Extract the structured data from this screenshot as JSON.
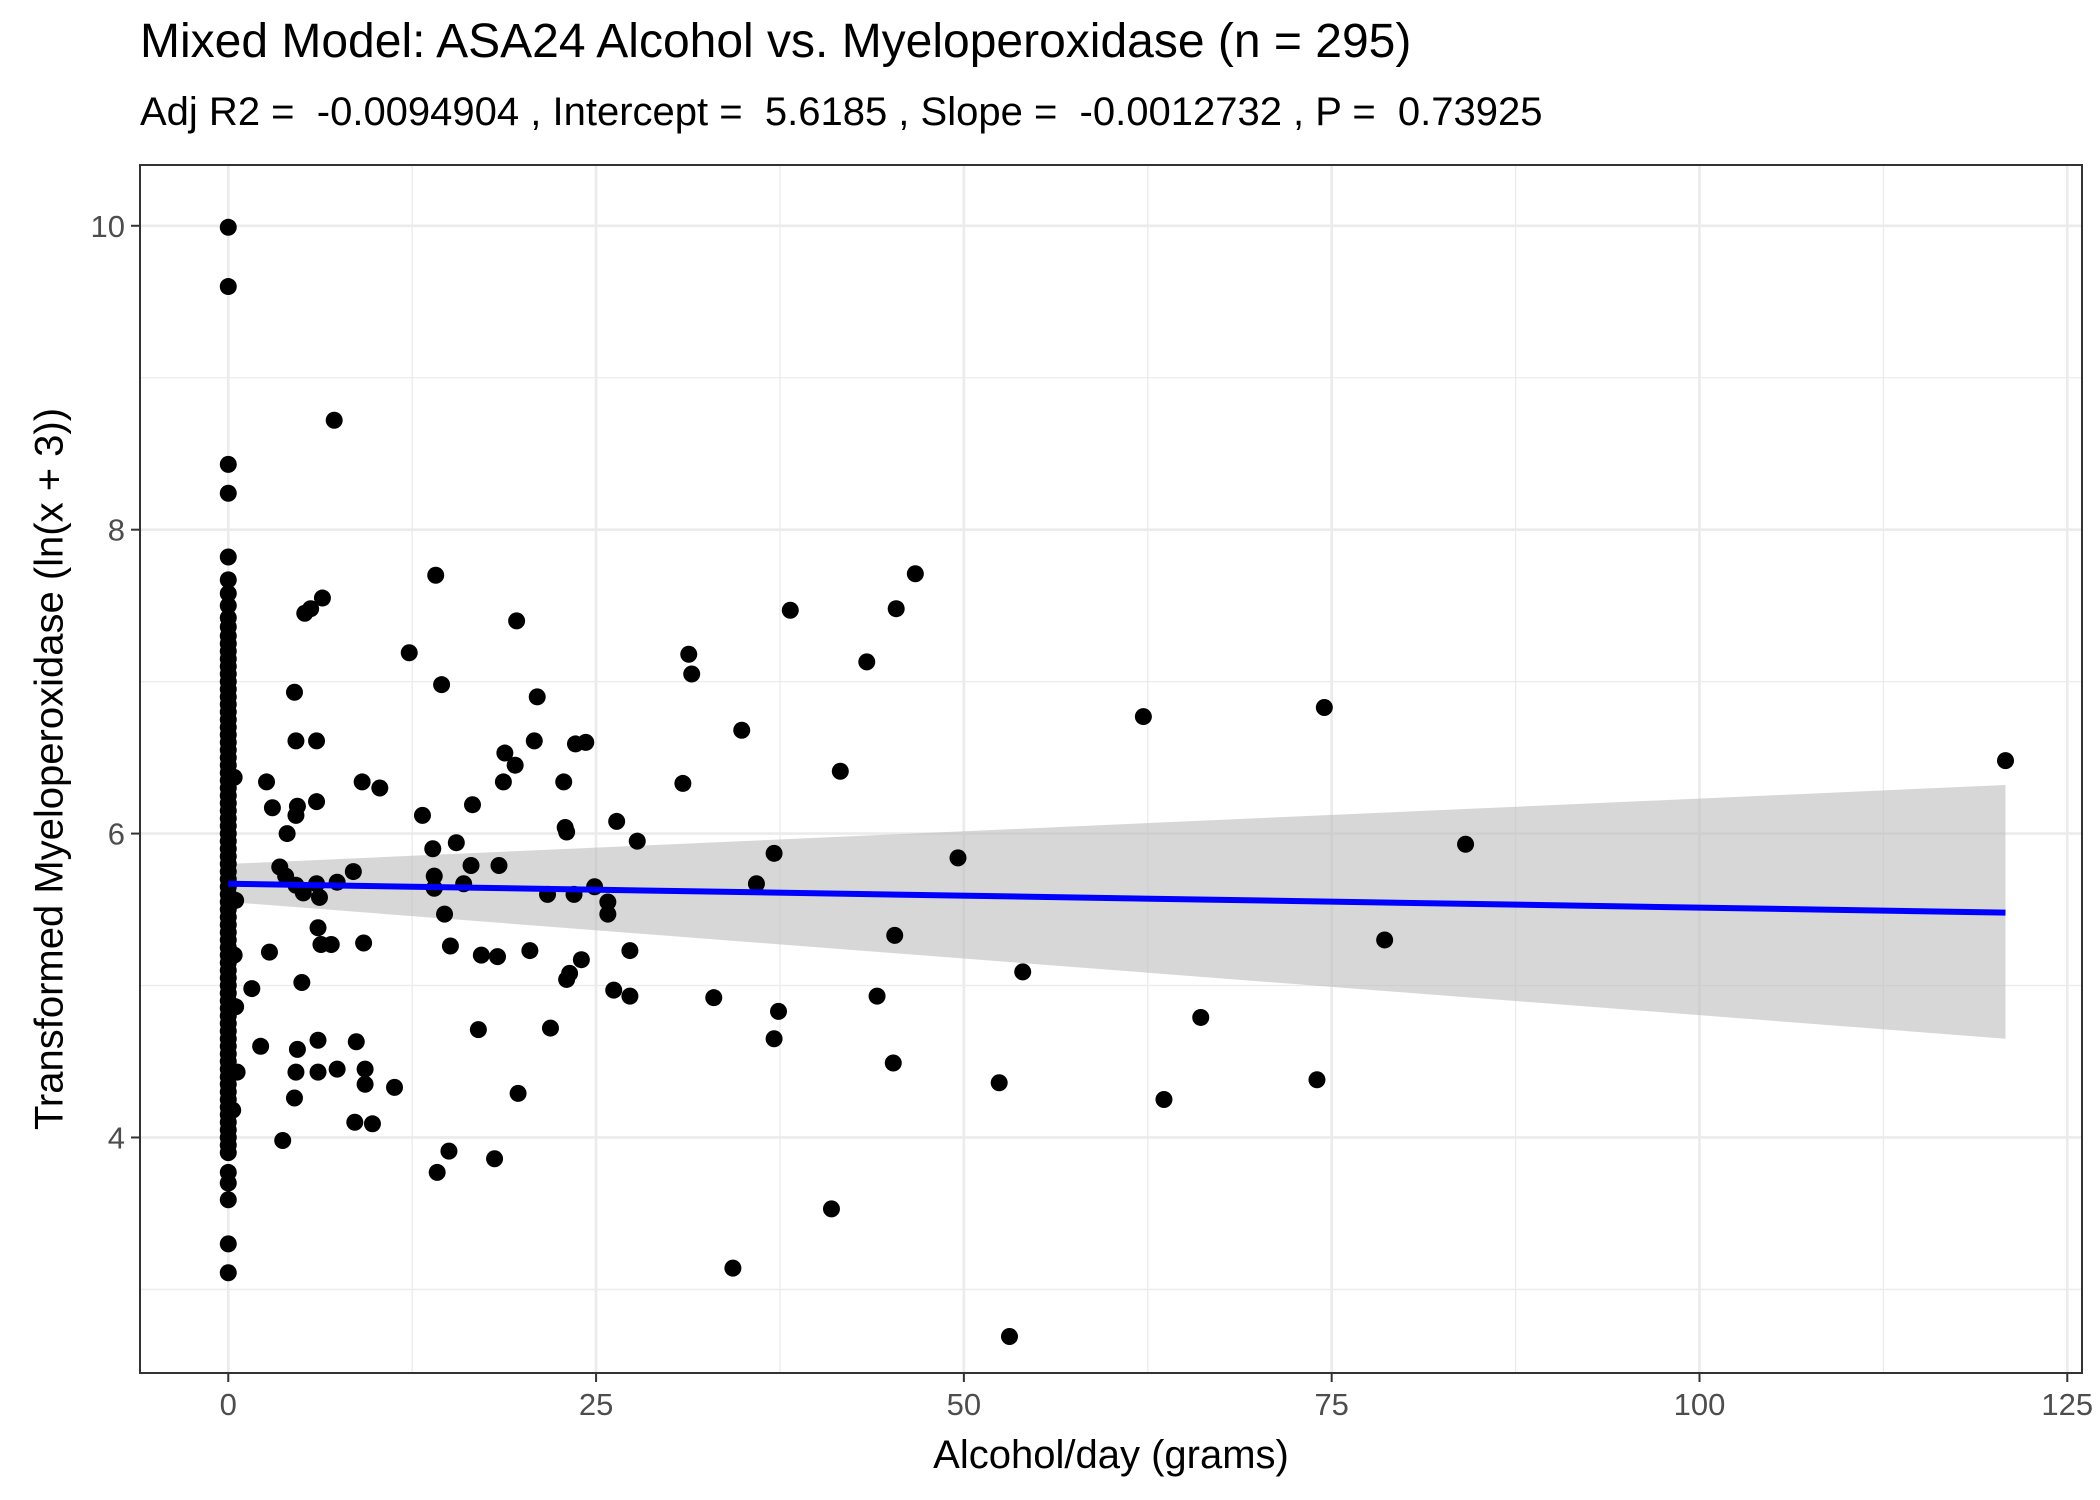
{
  "chart_data": {
    "type": "scatter",
    "title": "Mixed Model: ASA24 Alcohol vs. Myeloperoxidase (n = 295)",
    "subtitle": "Adj R2 =  -0.0094904 , Intercept =  5.6185 , Slope =  -0.0012732 , P =  0.73925",
    "xlabel": "Alcohol/day (grams)",
    "ylabel": "Transformed Myeloperoxidase (ln(x + 3))",
    "xlim": [
      -6,
      126
    ],
    "ylim": [
      2.45,
      10.4
    ],
    "xticks": [
      0,
      25,
      50,
      75,
      100,
      125
    ],
    "yticks": [
      4,
      6,
      8,
      10
    ],
    "grid": true,
    "colors": {
      "points": "#000000",
      "fit_line": "#0000ff",
      "ci_band": "#bdbdbd",
      "panel_border": "#333333",
      "grid": "#ebebeb"
    },
    "fit_line": {
      "x": [
        0,
        120.8
      ],
      "y": [
        5.67,
        5.48
      ]
    },
    "confidence_band": {
      "x": [
        0,
        120.8
      ],
      "lower": [
        5.55,
        4.65
      ],
      "upper": [
        5.8,
        6.32
      ]
    },
    "points": [
      [
        0,
        9.99
      ],
      [
        0,
        9.6
      ],
      [
        0,
        8.43
      ],
      [
        0,
        8.24
      ],
      [
        0,
        7.82
      ],
      [
        0,
        7.67
      ],
      [
        0,
        7.58
      ],
      [
        0,
        7.5
      ],
      [
        0,
        7.42
      ],
      [
        0,
        7.36
      ],
      [
        0,
        7.3
      ],
      [
        0,
        7.25
      ],
      [
        0,
        7.2
      ],
      [
        0,
        7.15
      ],
      [
        0,
        7.1
      ],
      [
        0,
        7.05
      ],
      [
        0,
        7.0
      ],
      [
        0,
        6.95
      ],
      [
        0,
        6.9
      ],
      [
        0,
        6.85
      ],
      [
        0,
        6.8
      ],
      [
        0,
        6.75
      ],
      [
        0,
        6.7
      ],
      [
        0,
        6.65
      ],
      [
        0,
        6.6
      ],
      [
        0,
        6.55
      ],
      [
        0,
        6.5
      ],
      [
        0,
        6.45
      ],
      [
        0,
        6.4
      ],
      [
        0,
        6.35
      ],
      [
        0,
        6.3
      ],
      [
        0,
        6.25
      ],
      [
        0,
        6.2
      ],
      [
        0,
        6.15
      ],
      [
        0,
        6.1
      ],
      [
        0,
        6.05
      ],
      [
        0,
        6.0
      ],
      [
        0,
        5.95
      ],
      [
        0,
        5.9
      ],
      [
        0,
        5.85
      ],
      [
        0,
        5.8
      ],
      [
        0,
        5.75
      ],
      [
        0,
        5.7
      ],
      [
        0,
        5.65
      ],
      [
        0,
        5.6
      ],
      [
        0,
        5.55
      ],
      [
        0,
        5.5
      ],
      [
        0,
        5.45
      ],
      [
        0,
        5.4
      ],
      [
        0,
        5.35
      ],
      [
        0,
        5.3
      ],
      [
        0,
        5.25
      ],
      [
        0,
        5.2
      ],
      [
        0,
        5.15
      ],
      [
        0,
        5.1
      ],
      [
        0,
        5.05
      ],
      [
        0,
        5.0
      ],
      [
        0,
        4.95
      ],
      [
        0,
        4.9
      ],
      [
        0,
        4.85
      ],
      [
        0,
        4.8
      ],
      [
        0,
        4.75
      ],
      [
        0,
        4.7
      ],
      [
        0,
        4.65
      ],
      [
        0,
        4.6
      ],
      [
        0,
        4.55
      ],
      [
        0,
        4.5
      ],
      [
        0,
        4.45
      ],
      [
        0,
        4.4
      ],
      [
        0,
        4.35
      ],
      [
        0,
        4.3
      ],
      [
        0,
        4.25
      ],
      [
        0,
        4.2
      ],
      [
        0,
        4.15
      ],
      [
        0,
        4.1
      ],
      [
        0,
        4.05
      ],
      [
        0,
        4.0
      ],
      [
        0,
        3.95
      ],
      [
        0,
        3.9
      ],
      [
        0,
        3.77
      ],
      [
        0,
        3.7
      ],
      [
        0,
        3.59
      ],
      [
        0,
        3.3
      ],
      [
        0,
        3.11
      ],
      [
        0.4,
        6.37
      ],
      [
        0.5,
        5.56
      ],
      [
        0.4,
        5.2
      ],
      [
        0.6,
        4.43
      ],
      [
        0.3,
        4.18
      ],
      [
        0.5,
        4.86
      ],
      [
        1.6,
        4.98
      ],
      [
        2.2,
        4.6
      ],
      [
        2.6,
        6.34
      ],
      [
        2.8,
        5.22
      ],
      [
        3.0,
        6.17
      ],
      [
        3.5,
        5.78
      ],
      [
        3.7,
        3.98
      ],
      [
        3.9,
        5.72
      ],
      [
        4.0,
        6.0
      ],
      [
        4.6,
        5.66
      ],
      [
        4.5,
        6.93
      ],
      [
        4.6,
        6.61
      ],
      [
        4.6,
        6.12
      ],
      [
        4.7,
        6.18
      ],
      [
        4.5,
        4.26
      ],
      [
        4.7,
        4.58
      ],
      [
        4.6,
        4.43
      ],
      [
        5.0,
        5.02
      ],
      [
        5.1,
        5.61
      ],
      [
        5.2,
        7.45
      ],
      [
        5.6,
        7.48
      ],
      [
        6.0,
        5.67
      ],
      [
        6.0,
        6.61
      ],
      [
        6.0,
        6.21
      ],
      [
        6.1,
        5.38
      ],
      [
        6.2,
        5.58
      ],
      [
        6.1,
        4.64
      ],
      [
        6.1,
        4.43
      ],
      [
        6.3,
        5.27
      ],
      [
        6.4,
        7.55
      ],
      [
        7.0,
        5.27
      ],
      [
        7.2,
        8.72
      ],
      [
        7.4,
        5.68
      ],
      [
        7.4,
        4.45
      ],
      [
        8.5,
        5.75
      ],
      [
        8.6,
        4.1
      ],
      [
        8.7,
        4.63
      ],
      [
        9.1,
        6.34
      ],
      [
        9.2,
        5.28
      ],
      [
        9.3,
        4.45
      ],
      [
        9.3,
        4.35
      ],
      [
        9.8,
        4.09
      ],
      [
        10.3,
        6.3
      ],
      [
        11.3,
        4.33
      ],
      [
        12.3,
        7.19
      ],
      [
        13.2,
        6.12
      ],
      [
        13.9,
        5.9
      ],
      [
        14.0,
        5.72
      ],
      [
        14.0,
        5.64
      ],
      [
        14.1,
        7.7
      ],
      [
        14.2,
        3.77
      ],
      [
        14.5,
        6.98
      ],
      [
        14.7,
        5.47
      ],
      [
        15.0,
        3.91
      ],
      [
        15.1,
        5.26
      ],
      [
        15.5,
        5.94
      ],
      [
        16.0,
        5.67
      ],
      [
        16.5,
        5.79
      ],
      [
        16.6,
        6.19
      ],
      [
        17.0,
        4.71
      ],
      [
        17.2,
        5.2
      ],
      [
        18.1,
        3.86
      ],
      [
        18.3,
        5.19
      ],
      [
        18.4,
        5.79
      ],
      [
        18.7,
        6.34
      ],
      [
        18.8,
        6.53
      ],
      [
        19.5,
        6.45
      ],
      [
        19.6,
        7.4
      ],
      [
        19.7,
        4.29
      ],
      [
        20.5,
        5.23
      ],
      [
        20.8,
        6.61
      ],
      [
        21.0,
        6.9
      ],
      [
        21.7,
        5.6
      ],
      [
        21.9,
        4.72
      ],
      [
        22.8,
        6.34
      ],
      [
        22.9,
        6.04
      ],
      [
        23.0,
        6.01
      ],
      [
        23.0,
        5.04
      ],
      [
        23.2,
        5.08
      ],
      [
        23.5,
        5.6
      ],
      [
        23.6,
        6.59
      ],
      [
        24.0,
        5.17
      ],
      [
        24.3,
        6.6
      ],
      [
        24.9,
        5.65
      ],
      [
        25.8,
        5.55
      ],
      [
        25.8,
        5.47
      ],
      [
        26.2,
        4.97
      ],
      [
        26.4,
        6.08
      ],
      [
        27.3,
        5.23
      ],
      [
        27.3,
        4.93
      ],
      [
        27.8,
        5.95
      ],
      [
        30.9,
        6.33
      ],
      [
        31.3,
        7.18
      ],
      [
        31.5,
        7.05
      ],
      [
        33.0,
        4.92
      ],
      [
        34.3,
        3.14
      ],
      [
        34.9,
        6.68
      ],
      [
        35.9,
        5.67
      ],
      [
        37.1,
        5.87
      ],
      [
        37.1,
        4.65
      ],
      [
        37.4,
        4.83
      ],
      [
        38.2,
        7.47
      ],
      [
        41.0,
        3.53
      ],
      [
        41.6,
        6.41
      ],
      [
        43.4,
        7.13
      ],
      [
        44.1,
        4.93
      ],
      [
        45.2,
        4.49
      ],
      [
        45.3,
        5.33
      ],
      [
        45.4,
        7.48
      ],
      [
        46.7,
        7.71
      ],
      [
        49.6,
        5.84
      ],
      [
        52.4,
        4.36
      ],
      [
        53.1,
        2.69
      ],
      [
        54.0,
        5.09
      ],
      [
        62.2,
        6.77
      ],
      [
        63.6,
        4.25
      ],
      [
        66.1,
        4.79
      ],
      [
        74.0,
        4.38
      ],
      [
        74.5,
        6.83
      ],
      [
        78.6,
        5.3
      ],
      [
        84.1,
        5.93
      ],
      [
        120.8,
        6.48
      ]
    ]
  }
}
